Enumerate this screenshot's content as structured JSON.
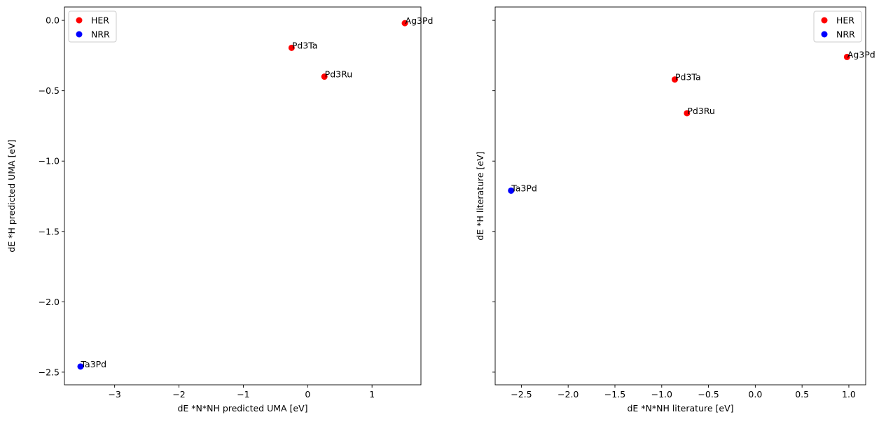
{
  "chart_data": [
    {
      "type": "scatter",
      "xlabel": "dE *N*NH predicted UMA [eV]",
      "ylabel": "dE *H predicted UMA [eV]",
      "xlim": [
        -3.78,
        1.76
      ],
      "ylim": [
        -2.59,
        0.095
      ],
      "xticks": [
        -3,
        -2,
        -1,
        0,
        1
      ],
      "xtick_labels": [
        "−3",
        "−2",
        "−1",
        "0",
        "1"
      ],
      "yticks": [
        0.0,
        -0.5,
        -1.0,
        -1.5,
        -2.0,
        -2.5
      ],
      "ytick_labels": [
        "0.0",
        "−0.5",
        "−1.0",
        "−1.5",
        "−2.0",
        "−2.5"
      ],
      "show_ytick_labels": true,
      "legend": {
        "placement": "top-left",
        "entries": [
          {
            "name": "HER",
            "color": "#ff0000"
          },
          {
            "name": "NRR",
            "color": "#0000ff"
          }
        ]
      },
      "series": [
        {
          "name": "HER",
          "color": "#ff0000",
          "points": [
            {
              "label": "Pd3Ta",
              "x": -0.25,
              "y": -0.195
            },
            {
              "label": "Pd3Ru",
              "x": 0.26,
              "y": -0.4
            },
            {
              "label": "Ag3Pd",
              "x": 1.51,
              "y": -0.02
            }
          ]
        },
        {
          "name": "NRR",
          "color": "#0000ff",
          "points": [
            {
              "label": "Ta3Pd",
              "x": -3.53,
              "y": -2.46
            }
          ]
        }
      ]
    },
    {
      "type": "scatter",
      "xlabel": "dE *N*NH literature [eV]",
      "ylabel": "dE *H literature [eV]",
      "xlim": [
        -2.78,
        1.18
      ],
      "ylim": [
        -2.59,
        0.095
      ],
      "xticks": [
        -2.5,
        -2.0,
        -1.5,
        -1.0,
        -0.5,
        0.0,
        0.5,
        1.0
      ],
      "xtick_labels": [
        "−2.5",
        "−2.0",
        "−1.5",
        "−1.0",
        "−0.5",
        "0.0",
        "0.5",
        "1.0"
      ],
      "yticks": [
        0.0,
        -0.5,
        -1.0,
        -1.5,
        -2.0,
        -2.5
      ],
      "ytick_labels": [],
      "show_ytick_labels": false,
      "legend": {
        "placement": "top-right",
        "entries": [
          {
            "name": "HER",
            "color": "#ff0000"
          },
          {
            "name": "NRR",
            "color": "#0000ff"
          }
        ]
      },
      "series": [
        {
          "name": "HER",
          "color": "#ff0000",
          "points": [
            {
              "label": "Pd3Ta",
              "x": -0.86,
              "y": -0.42
            },
            {
              "label": "Pd3Ru",
              "x": -0.73,
              "y": -0.66
            },
            {
              "label": "Ag3Pd",
              "x": 0.98,
              "y": -0.26
            }
          ]
        },
        {
          "name": "NRR",
          "color": "#0000ff",
          "points": [
            {
              "label": "Ta3Pd",
              "x": -2.61,
              "y": -1.21
            }
          ]
        }
      ]
    }
  ]
}
